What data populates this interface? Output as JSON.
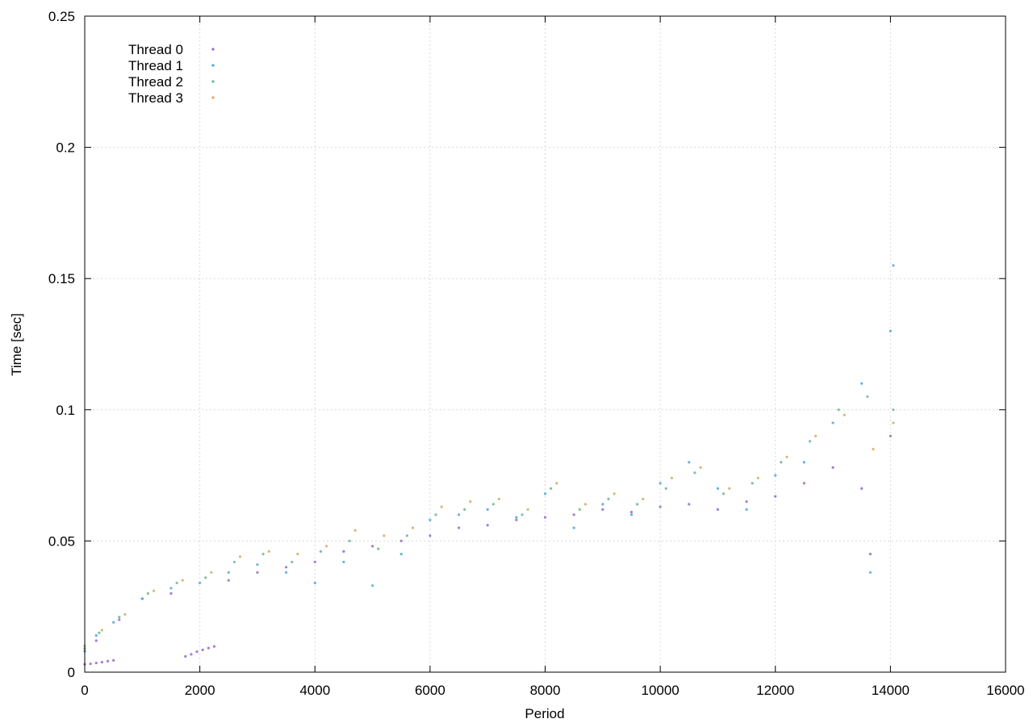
{
  "chart_data": {
    "type": "scatter",
    "title": "",
    "xlabel": "Period",
    "ylabel": "Time [sec]",
    "xlim": [
      0,
      16000
    ],
    "ylim": [
      0,
      0.25
    ],
    "x_ticks": [
      0,
      2000,
      4000,
      6000,
      8000,
      10000,
      12000,
      14000,
      16000
    ],
    "y_ticks": [
      0,
      0.05,
      0.1,
      0.15,
      0.2,
      0.25
    ],
    "x_tick_labels": [
      "0",
      "2000",
      "4000",
      "6000",
      "8000",
      "10000",
      "12000",
      "14000",
      "16000"
    ],
    "y_tick_labels": [
      "0",
      "0.05",
      "0.1",
      "0.15",
      "0.2",
      "0.25"
    ],
    "grid": true,
    "legend_position": "top-left",
    "series": [
      {
        "name": "Thread 0",
        "color": "#9467cc",
        "points": [
          [
            0,
            0.003
          ],
          [
            100,
            0.0032
          ],
          [
            200,
            0.0035
          ],
          [
            300,
            0.0038
          ],
          [
            400,
            0.0042
          ],
          [
            500,
            0.0045
          ],
          [
            1750,
            0.006
          ],
          [
            1850,
            0.0068
          ],
          [
            1950,
            0.0078
          ],
          [
            2050,
            0.0085
          ],
          [
            2150,
            0.0092
          ],
          [
            2250,
            0.0098
          ],
          [
            200,
            0.012
          ],
          [
            600,
            0.02
          ],
          [
            1000,
            0.028
          ],
          [
            1500,
            0.03
          ],
          [
            2500,
            0.035
          ],
          [
            3000,
            0.038
          ],
          [
            3500,
            0.04
          ],
          [
            4000,
            0.042
          ],
          [
            4500,
            0.046
          ],
          [
            5000,
            0.048
          ],
          [
            5500,
            0.05
          ],
          [
            6000,
            0.052
          ],
          [
            6500,
            0.055
          ],
          [
            7000,
            0.056
          ],
          [
            7500,
            0.058
          ],
          [
            8000,
            0.059
          ],
          [
            8500,
            0.06
          ],
          [
            9000,
            0.062
          ],
          [
            9500,
            0.061
          ],
          [
            10000,
            0.063
          ],
          [
            10500,
            0.064
          ],
          [
            11000,
            0.062
          ],
          [
            11500,
            0.065
          ],
          [
            12000,
            0.067
          ],
          [
            12500,
            0.072
          ],
          [
            13000,
            0.078
          ],
          [
            13500,
            0.07
          ],
          [
            13650,
            0.045
          ],
          [
            14000,
            0.09
          ]
        ]
      },
      {
        "name": "Thread 1",
        "color": "#4aa8d8",
        "points": [
          [
            0,
            0.008
          ],
          [
            200,
            0.014
          ],
          [
            500,
            0.019
          ],
          [
            1000,
            0.028
          ],
          [
            1500,
            0.032
          ],
          [
            2000,
            0.034
          ],
          [
            2500,
            0.038
          ],
          [
            3000,
            0.041
          ],
          [
            3500,
            0.038
          ],
          [
            4000,
            0.034
          ],
          [
            4500,
            0.042
          ],
          [
            5000,
            0.033
          ],
          [
            5500,
            0.045
          ],
          [
            6000,
            0.058
          ],
          [
            6500,
            0.06
          ],
          [
            7000,
            0.062
          ],
          [
            7500,
            0.059
          ],
          [
            8000,
            0.068
          ],
          [
            8500,
            0.055
          ],
          [
            9000,
            0.064
          ],
          [
            9500,
            0.06
          ],
          [
            10000,
            0.072
          ],
          [
            10500,
            0.08
          ],
          [
            11000,
            0.07
          ],
          [
            11500,
            0.062
          ],
          [
            12000,
            0.075
          ],
          [
            12500,
            0.08
          ],
          [
            13000,
            0.095
          ],
          [
            13500,
            0.11
          ],
          [
            13650,
            0.038
          ],
          [
            14000,
            0.13
          ],
          [
            14050,
            0.155
          ]
        ]
      },
      {
        "name": "Thread 2",
        "color": "#6fb48a",
        "points": [
          [
            0,
            0.009
          ],
          [
            250,
            0.015
          ],
          [
            600,
            0.021
          ],
          [
            1100,
            0.03
          ],
          [
            1600,
            0.034
          ],
          [
            2100,
            0.036
          ],
          [
            2600,
            0.042
          ],
          [
            3100,
            0.045
          ],
          [
            3600,
            0.042
          ],
          [
            4100,
            0.046
          ],
          [
            4600,
            0.05
          ],
          [
            5100,
            0.047
          ],
          [
            5600,
            0.052
          ],
          [
            6100,
            0.06
          ],
          [
            6600,
            0.062
          ],
          [
            7100,
            0.064
          ],
          [
            7600,
            0.06
          ],
          [
            8100,
            0.07
          ],
          [
            8600,
            0.062
          ],
          [
            9100,
            0.066
          ],
          [
            9600,
            0.064
          ],
          [
            10100,
            0.07
          ],
          [
            10600,
            0.076
          ],
          [
            11100,
            0.068
          ],
          [
            11600,
            0.072
          ],
          [
            12100,
            0.08
          ],
          [
            12600,
            0.088
          ],
          [
            13100,
            0.1
          ],
          [
            13600,
            0.105
          ],
          [
            14050,
            0.1
          ]
        ]
      },
      {
        "name": "Thread 3",
        "color": "#dba85a",
        "points": [
          [
            0,
            0.01
          ],
          [
            300,
            0.016
          ],
          [
            700,
            0.022
          ],
          [
            1200,
            0.031
          ],
          [
            1700,
            0.035
          ],
          [
            2200,
            0.038
          ],
          [
            2700,
            0.044
          ],
          [
            3200,
            0.046
          ],
          [
            3700,
            0.045
          ],
          [
            4200,
            0.048
          ],
          [
            4700,
            0.054
          ],
          [
            5200,
            0.052
          ],
          [
            5700,
            0.055
          ],
          [
            6200,
            0.063
          ],
          [
            6700,
            0.065
          ],
          [
            7200,
            0.066
          ],
          [
            7700,
            0.062
          ],
          [
            8200,
            0.072
          ],
          [
            8700,
            0.064
          ],
          [
            9200,
            0.068
          ],
          [
            9700,
            0.066
          ],
          [
            10200,
            0.074
          ],
          [
            10700,
            0.078
          ],
          [
            11200,
            0.07
          ],
          [
            11700,
            0.074
          ],
          [
            12200,
            0.082
          ],
          [
            12700,
            0.09
          ],
          [
            13200,
            0.098
          ],
          [
            13700,
            0.085
          ],
          [
            14050,
            0.095
          ]
        ]
      }
    ]
  }
}
